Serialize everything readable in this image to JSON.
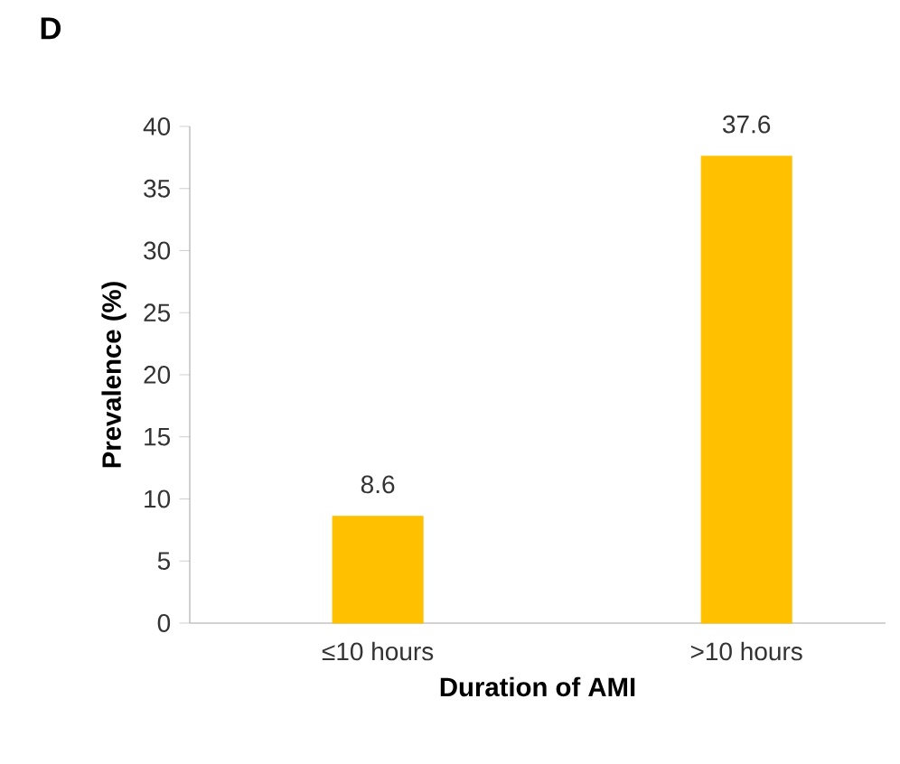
{
  "chart_data": {
    "type": "bar",
    "title": "D",
    "xlabel": "Duration of AMI",
    "ylabel": "Prevalence (%)",
    "categories": [
      "≤10 hours",
      ">10 hours"
    ],
    "values": [
      8.6,
      37.6
    ],
    "color": "#ffc000",
    "ylim": [
      0,
      40
    ],
    "yticks": [
      0,
      5,
      10,
      15,
      20,
      25,
      30,
      35,
      40
    ],
    "data_labels": true
  }
}
